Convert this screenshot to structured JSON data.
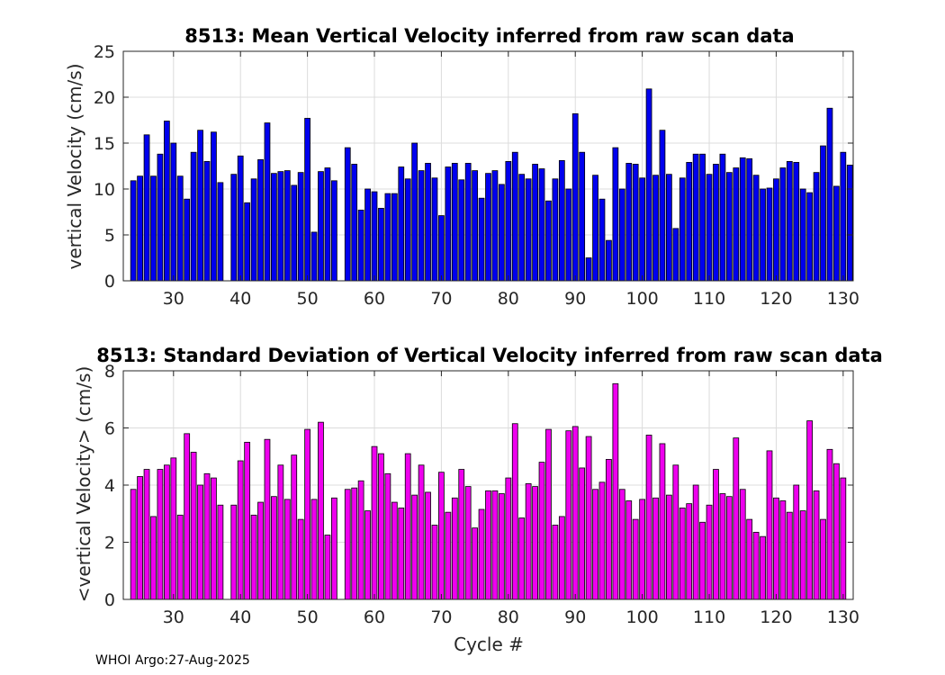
{
  "chart_data": [
    {
      "type": "bar",
      "title": "8513: Mean Vertical Velocity inferred from raw scan data",
      "xlabel": "",
      "ylabel": "vertical Velocity (cm/s)",
      "xlim": [
        22.5,
        131.5
      ],
      "ylim": [
        0,
        25
      ],
      "xticks": [
        30,
        40,
        50,
        60,
        70,
        80,
        90,
        100,
        110,
        120,
        130
      ],
      "yticks": [
        0,
        5,
        10,
        15,
        20,
        25
      ],
      "grid": true,
      "color": "#0000ee",
      "x": [
        24,
        25,
        26,
        27,
        28,
        29,
        30,
        31,
        32,
        33,
        34,
        35,
        36,
        37,
        39,
        40,
        41,
        42,
        43,
        44,
        45,
        46,
        47,
        48,
        49,
        50,
        51,
        52,
        53,
        54,
        56,
        57,
        58,
        59,
        60,
        61,
        62,
        63,
        64,
        65,
        66,
        67,
        68,
        69,
        70,
        71,
        72,
        73,
        74,
        75,
        76,
        77,
        78,
        79,
        80,
        81,
        82,
        83,
        84,
        85,
        86,
        87,
        88,
        89,
        90,
        91,
        92,
        93,
        94,
        95,
        96,
        97,
        98,
        99,
        100,
        101,
        102,
        103,
        104,
        105,
        106,
        107,
        108,
        109,
        110,
        111,
        112,
        113,
        114,
        115,
        116,
        117,
        118,
        119,
        120,
        121,
        122,
        123,
        124,
        125,
        126,
        127,
        128,
        129,
        130,
        131
      ],
      "values": [
        10.9,
        11.4,
        15.9,
        11.4,
        13.8,
        17.4,
        15.0,
        11.4,
        8.9,
        14.0,
        16.4,
        13.0,
        16.2,
        10.7,
        11.6,
        13.6,
        8.5,
        11.1,
        13.2,
        17.2,
        11.7,
        11.9,
        12.0,
        10.4,
        11.8,
        17.7,
        5.3,
        11.9,
        12.3,
        10.9,
        14.5,
        12.7,
        7.7,
        10.0,
        9.7,
        7.9,
        9.5,
        9.5,
        12.4,
        11.1,
        15.0,
        12.0,
        12.8,
        11.2,
        7.1,
        12.4,
        12.8,
        11.0,
        12.8,
        12.0,
        9.0,
        11.7,
        12.0,
        10.5,
        13.0,
        14.0,
        11.6,
        11.1,
        12.7,
        12.2,
        8.7,
        11.1,
        13.1,
        10.0,
        18.2,
        14.0,
        2.5,
        11.5,
        8.9,
        4.4,
        14.5,
        10.0,
        12.8,
        12.7,
        11.2,
        20.9,
        11.5,
        16.4,
        11.6,
        5.7,
        11.2,
        12.9,
        13.8,
        13.8,
        11.6,
        12.7,
        13.8,
        11.8,
        12.3,
        13.4,
        13.3,
        11.5,
        10.0,
        10.1,
        11.1,
        12.3,
        13.0,
        12.9,
        10.0,
        9.6,
        11.8,
        14.7,
        18.8,
        10.3,
        14.0,
        12.6
      ]
    },
    {
      "type": "bar",
      "title": "8513: Standard Deviation of Vertical Velocity inferred from raw scan data",
      "xlabel": "Cycle #",
      "ylabel": "<vertical Velocity> (cm/s)",
      "xlim": [
        22.5,
        131.5
      ],
      "ylim": [
        0,
        8
      ],
      "xticks": [
        30,
        40,
        50,
        60,
        70,
        80,
        90,
        100,
        110,
        120,
        130
      ],
      "yticks": [
        0,
        2,
        4,
        6,
        8
      ],
      "grid": true,
      "color": "#ee00ee",
      "x": [
        24,
        25,
        26,
        27,
        28,
        29,
        30,
        31,
        32,
        33,
        34,
        35,
        36,
        37,
        39,
        40,
        41,
        42,
        43,
        44,
        45,
        46,
        47,
        48,
        49,
        50,
        51,
        52,
        53,
        54,
        56,
        57,
        58,
        59,
        60,
        61,
        62,
        63,
        64,
        65,
        66,
        67,
        68,
        69,
        70,
        71,
        72,
        73,
        74,
        75,
        76,
        77,
        78,
        79,
        80,
        81,
        82,
        83,
        84,
        85,
        86,
        87,
        88,
        89,
        90,
        91,
        92,
        93,
        94,
        95,
        96,
        97,
        98,
        99,
        100,
        101,
        102,
        103,
        104,
        105,
        106,
        107,
        108,
        109,
        110,
        111,
        112,
        113,
        114,
        115,
        116,
        117,
        118,
        119,
        120,
        121,
        122,
        123,
        124,
        125,
        126,
        127,
        128,
        129,
        130,
        131
      ],
      "values": [
        3.85,
        4.3,
        4.55,
        2.9,
        4.55,
        4.7,
        4.95,
        2.95,
        5.8,
        5.15,
        4.0,
        4.4,
        4.25,
        3.3,
        3.3,
        4.85,
        5.5,
        2.95,
        3.4,
        5.6,
        3.6,
        4.7,
        3.5,
        5.05,
        2.8,
        5.95,
        3.5,
        6.2,
        2.25,
        3.55,
        3.85,
        3.9,
        4.15,
        3.1,
        5.35,
        5.1,
        4.4,
        3.4,
        3.2,
        5.1,
        3.65,
        4.7,
        3.75,
        2.6,
        4.45,
        3.05,
        3.55,
        4.55,
        3.95,
        2.5,
        3.15,
        3.8,
        3.8,
        3.7,
        4.25,
        6.15,
        2.85,
        4.05,
        3.95,
        4.8,
        5.95,
        2.6,
        2.9,
        5.9,
        6.05,
        4.6,
        5.7,
        3.85,
        4.1,
        4.9,
        7.55,
        3.85,
        3.45,
        2.8,
        3.5,
        5.75,
        3.55,
        5.45,
        3.65,
        4.7,
        3.2,
        3.35,
        4.0,
        2.7,
        3.3,
        4.55,
        3.7,
        3.6,
        5.65,
        3.85,
        2.8,
        2.35,
        2.2,
        5.2,
        3.55,
        3.45,
        3.05,
        4.0,
        3.1,
        6.25,
        3.8,
        2.8,
        5.25,
        4.75,
        4.25,
        0
      ]
    }
  ],
  "footer": {
    "credit": "WHOI Argo:27-Aug-2025"
  }
}
